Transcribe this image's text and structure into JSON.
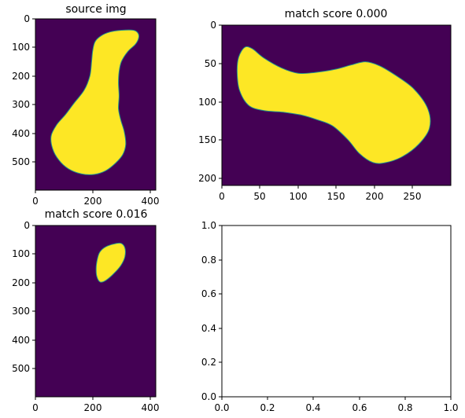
{
  "colors": {
    "background": "#440154",
    "shape": "#fde725",
    "edge": "#21918c"
  },
  "chart_data": [
    {
      "id": "source",
      "type": "image",
      "title": "source img",
      "extent": {
        "width": 420,
        "height": 600
      },
      "xticks": [
        "0",
        "200",
        "400"
      ],
      "yticks": [
        "0",
        "100",
        "200",
        "300",
        "400",
        "500"
      ],
      "blob": [
        [
          342,
          40
        ],
        [
          300,
          40
        ],
        [
          260,
          46
        ],
        [
          228,
          60
        ],
        [
          208,
          80
        ],
        [
          200,
          110
        ],
        [
          196,
          150
        ],
        [
          190,
          200
        ],
        [
          170,
          250
        ],
        [
          135,
          295
        ],
        [
          105,
          335
        ],
        [
          75,
          370
        ],
        [
          55,
          410
        ],
        [
          60,
          455
        ],
        [
          82,
          495
        ],
        [
          115,
          525
        ],
        [
          160,
          543
        ],
        [
          205,
          545
        ],
        [
          245,
          532
        ],
        [
          280,
          505
        ],
        [
          305,
          475
        ],
        [
          315,
          440
        ],
        [
          310,
          395
        ],
        [
          298,
          355
        ],
        [
          290,
          315
        ],
        [
          292,
          270
        ],
        [
          290,
          225
        ],
        [
          292,
          185
        ],
        [
          300,
          150
        ],
        [
          322,
          115
        ],
        [
          348,
          90
        ],
        [
          360,
          68
        ],
        [
          358,
          50
        ]
      ]
    },
    {
      "id": "match1",
      "type": "image",
      "title": "match score 0.000",
      "extent": {
        "width": 300,
        "height": 210
      },
      "xticks": [
        "0",
        "50",
        "100",
        "150",
        "200",
        "250"
      ],
      "yticks": [
        "0",
        "50",
        "100",
        "150",
        "200"
      ],
      "blob": [
        [
          30,
          29
        ],
        [
          22,
          42
        ],
        [
          20,
          62
        ],
        [
          23,
          85
        ],
        [
          35,
          105
        ],
        [
          55,
          112
        ],
        [
          80,
          114
        ],
        [
          105,
          118
        ],
        [
          125,
          124
        ],
        [
          145,
          132
        ],
        [
          165,
          150
        ],
        [
          180,
          168
        ],
        [
          198,
          180
        ],
        [
          215,
          180
        ],
        [
          237,
          172
        ],
        [
          258,
          156
        ],
        [
          272,
          135
        ],
        [
          270,
          110
        ],
        [
          252,
          84
        ],
        [
          228,
          66
        ],
        [
          206,
          53
        ],
        [
          188,
          48
        ],
        [
          170,
          52
        ],
        [
          148,
          58
        ],
        [
          122,
          62
        ],
        [
          100,
          63
        ],
        [
          78,
          56
        ],
        [
          55,
          43
        ],
        [
          40,
          31
        ]
      ]
    },
    {
      "id": "match2",
      "type": "image",
      "title": "match score 0.016",
      "extent": {
        "width": 420,
        "height": 600
      },
      "xticks": [
        "0",
        "200",
        "400"
      ],
      "yticks": [
        "0",
        "100",
        "200",
        "300",
        "400",
        "500"
      ],
      "blob": [
        [
          297,
          62
        ],
        [
          265,
          67
        ],
        [
          240,
          78
        ],
        [
          224,
          94
        ],
        [
          216,
          118
        ],
        [
          212,
          148
        ],
        [
          214,
          178
        ],
        [
          226,
          198
        ],
        [
          246,
          192
        ],
        [
          274,
          168
        ],
        [
          298,
          140
        ],
        [
          312,
          110
        ],
        [
          312,
          78
        ]
      ]
    },
    {
      "id": "empty",
      "type": "axes",
      "title": "",
      "xlim": [
        0,
        1
      ],
      "ylim": [
        0,
        1
      ],
      "xticks": [
        "0.0",
        "0.2",
        "0.4",
        "0.6",
        "0.8",
        "1.0"
      ],
      "yticks": [
        "0.0",
        "0.2",
        "0.4",
        "0.6",
        "0.8",
        "1.0"
      ]
    }
  ]
}
